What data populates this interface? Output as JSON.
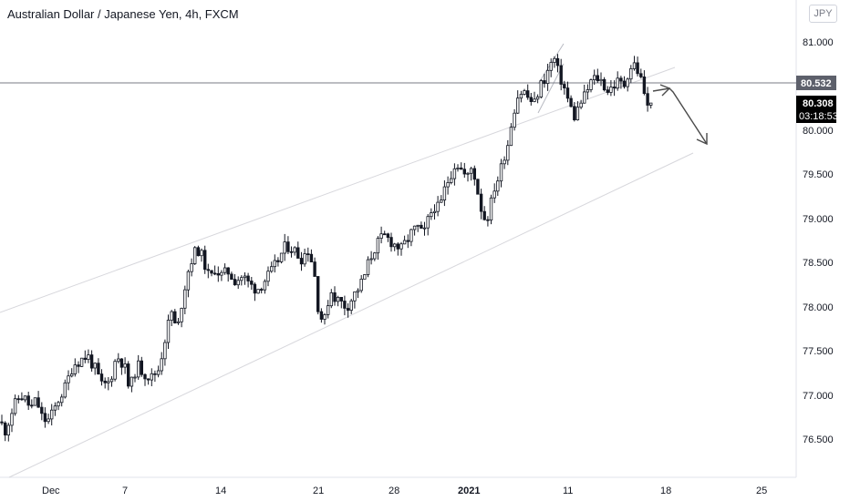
{
  "header": {
    "title": "Australian Dollar / Japanese Yen, 4h, FXCM",
    "currency_button": "JPY"
  },
  "colors": {
    "up_candle": "#ffffff",
    "down_candle": "#131722",
    "wick": "#131722",
    "channel_line": "#d7d7dc",
    "horizontal_line": "#787b86",
    "arrow": "#4a4a4a",
    "label_dark": "#000000",
    "label_grey": "#5d606b"
  },
  "chart_data": {
    "type": "candlestick",
    "symbol": "AUDJPY",
    "timeframe": "4h",
    "x_tick_labels": [
      "Dec",
      "7",
      "14",
      "21",
      "28",
      "2021",
      "11",
      "18",
      "25"
    ],
    "y_tick_labels": [
      "81.000",
      "80.000",
      "79.500",
      "79.000",
      "78.500",
      "78.000",
      "77.500",
      "77.000",
      "76.500"
    ],
    "ylim": [
      76.1,
      81.2
    ],
    "price_labels": {
      "horizontal_level": "80.532",
      "last_price": "80.308",
      "countdown": "03:18:53"
    },
    "horizontal_level_value": 80.532,
    "last_price_value": 80.308,
    "close_path": [
      [
        0,
        76.7
      ],
      [
        6,
        76.6
      ],
      [
        14,
        76.85
      ],
      [
        22,
        77.0
      ],
      [
        28,
        76.95
      ],
      [
        34,
        76.85
      ],
      [
        40,
        76.95
      ],
      [
        46,
        76.75
      ],
      [
        52,
        76.7
      ],
      [
        58,
        76.8
      ],
      [
        64,
        76.95
      ],
      [
        72,
        77.1
      ],
      [
        80,
        77.35
      ],
      [
        88,
        77.4
      ],
      [
        96,
        77.45
      ],
      [
        104,
        77.3
      ],
      [
        112,
        77.1
      ],
      [
        120,
        77.15
      ],
      [
        128,
        77.45
      ],
      [
        136,
        77.35
      ],
      [
        142,
        77.05
      ],
      [
        150,
        77.35
      ],
      [
        158,
        77.25
      ],
      [
        166,
        77.2
      ],
      [
        174,
        77.3
      ],
      [
        182,
        77.7
      ],
      [
        188,
        77.95
      ],
      [
        194,
        77.7
      ],
      [
        200,
        78.1
      ],
      [
        206,
        78.4
      ],
      [
        212,
        78.6
      ],
      [
        218,
        78.65
      ],
      [
        224,
        78.5
      ],
      [
        230,
        78.3
      ],
      [
        236,
        78.45
      ],
      [
        242,
        78.35
      ],
      [
        250,
        78.4
      ],
      [
        258,
        78.3
      ],
      [
        266,
        78.35
      ],
      [
        274,
        78.25
      ],
      [
        282,
        78.2
      ],
      [
        290,
        78.3
      ],
      [
        298,
        78.4
      ],
      [
        306,
        78.55
      ],
      [
        314,
        78.7
      ],
      [
        322,
        78.65
      ],
      [
        330,
        78.55
      ],
      [
        338,
        78.65
      ],
      [
        344,
        78.45
      ],
      [
        350,
        77.9
      ],
      [
        356,
        77.85
      ],
      [
        362,
        78.2
      ],
      [
        368,
        78.1
      ],
      [
        374,
        78.05
      ],
      [
        380,
        78.0
      ],
      [
        386,
        78.1
      ],
      [
        392,
        78.2
      ],
      [
        398,
        78.3
      ],
      [
        404,
        78.5
      ],
      [
        410,
        78.65
      ],
      [
        416,
        78.75
      ],
      [
        422,
        78.8
      ],
      [
        428,
        78.75
      ],
      [
        434,
        78.7
      ],
      [
        440,
        78.65
      ],
      [
        446,
        78.75
      ],
      [
        452,
        78.85
      ],
      [
        458,
        78.9
      ],
      [
        464,
        78.8
      ],
      [
        470,
        79.0
      ],
      [
        476,
        79.15
      ],
      [
        482,
        79.1
      ],
      [
        488,
        79.35
      ],
      [
        494,
        79.5
      ],
      [
        500,
        79.65
      ],
      [
        506,
        79.55
      ],
      [
        512,
        79.45
      ],
      [
        518,
        79.6
      ],
      [
        524,
        79.3
      ],
      [
        530,
        79.0
      ],
      [
        536,
        79.05
      ],
      [
        542,
        79.35
      ],
      [
        548,
        79.5
      ],
      [
        552,
        79.7
      ],
      [
        556,
        79.8
      ],
      [
        560,
        80.05
      ],
      [
        564,
        80.25
      ],
      [
        568,
        80.4
      ],
      [
        574,
        80.45
      ],
      [
        580,
        80.35
      ],
      [
        586,
        80.3
      ],
      [
        592,
        80.5
      ],
      [
        598,
        80.6
      ],
      [
        604,
        80.75
      ],
      [
        608,
        80.8
      ],
      [
        612,
        80.65
      ],
      [
        618,
        80.5
      ],
      [
        624,
        80.3
      ],
      [
        630,
        80.15
      ],
      [
        636,
        80.3
      ],
      [
        642,
        80.4
      ],
      [
        648,
        80.55
      ],
      [
        654,
        80.6
      ],
      [
        660,
        80.55
      ],
      [
        666,
        80.45
      ],
      [
        672,
        80.5
      ],
      [
        678,
        80.55
      ],
      [
        684,
        80.5
      ],
      [
        690,
        80.7
      ],
      [
        696,
        80.75
      ],
      [
        702,
        80.6
      ],
      [
        706,
        80.45
      ],
      [
        710,
        80.25
      ],
      [
        714,
        80.308
      ]
    ]
  }
}
